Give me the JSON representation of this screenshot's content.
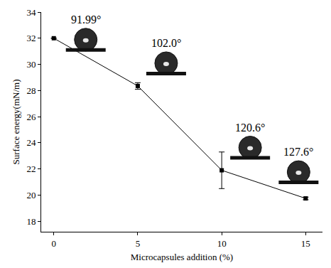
{
  "chart_data": {
    "type": "line",
    "marker": "square",
    "color": "#000000",
    "x_label": "Microcapsules addition (%)",
    "y_label": "Surface energy(mN/m)",
    "x": [
      0,
      5,
      10,
      15
    ],
    "values": [
      32.0,
      28.35,
      21.9,
      19.75
    ],
    "errors": [
      0,
      0.25,
      1.4,
      0.1
    ],
    "annotations": [
      "91.99°",
      "102.0°",
      "120.6°",
      "127.6°"
    ],
    "xlim": [
      -0.75,
      16
    ],
    "xticks": [
      0,
      5,
      10,
      15
    ],
    "ylim": [
      17.2,
      34
    ],
    "yticks": [
      18,
      20,
      22,
      24,
      26,
      28,
      30,
      32,
      34
    ],
    "grid": false
  }
}
